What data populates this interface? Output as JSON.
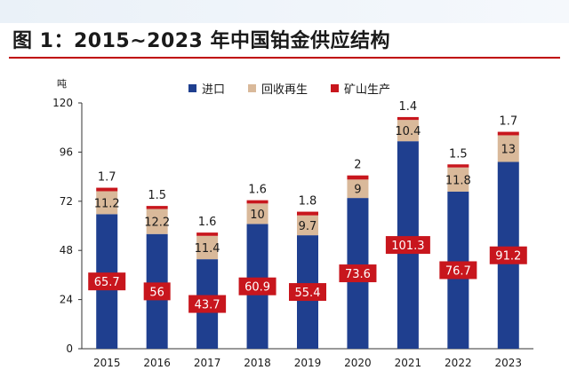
{
  "title": "图 1：2015~2023 年中国铂金供应结构",
  "colors": {
    "import": "#1f3f8f",
    "recycle": "#d9b99a",
    "mining": "#c8161d",
    "accent_rule": "#c00000",
    "text": "#1a1a1a"
  },
  "chart_data": {
    "type": "bar",
    "stacked": true,
    "unit": "吨",
    "categories": [
      "2015",
      "2016",
      "2017",
      "2018",
      "2019",
      "2020",
      "2021",
      "2022",
      "2023"
    ],
    "series": [
      {
        "name": "进口",
        "values": [
          65.7,
          56,
          43.7,
          60.9,
          55.4,
          73.6,
          101.3,
          76.7,
          91.2
        ],
        "labels": [
          "65.7",
          "56",
          "43.7",
          "60.9",
          "55.4",
          "73.6",
          "101.3",
          "76.7",
          "91.2"
        ]
      },
      {
        "name": "回收再生",
        "values": [
          11.2,
          12.2,
          11.4,
          10,
          9.7,
          9,
          10.4,
          11.8,
          13
        ],
        "labels": [
          "11.2",
          "12.2",
          "11.4",
          "10",
          "9.7",
          "9",
          "10.4",
          "11.8",
          "13"
        ]
      },
      {
        "name": "矿山生产",
        "values": [
          1.7,
          1.5,
          1.6,
          1.6,
          1.8,
          2,
          1.4,
          1.5,
          1.7
        ],
        "labels": [
          "1.7",
          "1.5",
          "1.6",
          "1.6",
          "1.8",
          "2",
          "1.4",
          "1.5",
          "1.7"
        ]
      }
    ],
    "ylim": [
      0,
      120
    ],
    "yticks": [
      "0",
      "24",
      "48",
      "72",
      "96",
      "120"
    ],
    "grid": false,
    "legend": "top"
  }
}
